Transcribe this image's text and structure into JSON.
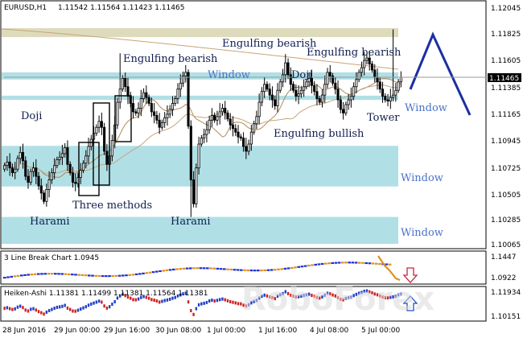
{
  "chart_data": [
    {
      "type": "candlestick",
      "symbol_header": "EURUSD,H1",
      "ohlc_header": "1.11542 1.11564 1.11423 1.11465",
      "price_axis_ticks": [
        "1.12045",
        "1.11825",
        "1.11605",
        "1.11385",
        "1.11165",
        "1.10945",
        "1.10725",
        "1.10505",
        "1.10285",
        "1.10065"
      ],
      "current_price_label": "1.11465",
      "ylim": [
        1.10065,
        1.12045
      ],
      "time_axis_ticks": [
        "28 Jun 2016",
        "29 Jun 00:00",
        "29 Jun 16:00",
        "30 Jun 08:00",
        "1 Jul 00:00",
        "1 Jul 16:00",
        "4 Jul 08:00",
        "5 Jul 00:00"
      ],
      "annotations": [
        "Engulfing bearish",
        "Engulfing bearish",
        "Engulfing bearish",
        "Window",
        "Doji",
        "Window",
        "Doji",
        "Tower",
        "Engulfing bullish",
        "Window",
        "Three methods",
        "Harami",
        "Harami",
        "Window"
      ],
      "zones": [
        {
          "label": "",
          "from": 1.11795,
          "to": 1.1187,
          "color": "#dedbbd"
        },
        {
          "label": "Window",
          "from": 1.1144,
          "to": 1.115,
          "color": "#b0e0e6"
        },
        {
          "label": "Window",
          "from": 1.1127,
          "to": 1.11305,
          "color": "#b0e0e6"
        },
        {
          "label": "Window",
          "from": 1.10545,
          "to": 1.10885,
          "color": "#b0e0e6"
        },
        {
          "label": "Window",
          "from": 1.10065,
          "to": 1.1029,
          "color": "#b0e0e6"
        }
      ],
      "closes": [
        1.1072,
        1.1075,
        1.107,
        1.1066,
        1.1069,
        1.1078,
        1.1083,
        1.1076,
        1.1063,
        1.1058,
        1.1067,
        1.107,
        1.1063,
        1.1055,
        1.1049,
        1.1042,
        1.1052,
        1.106,
        1.1066,
        1.1072,
        1.1077,
        1.1079,
        1.1082,
        1.1087,
        1.1073,
        1.1066,
        1.1058,
        1.1057,
        1.1062,
        1.1068,
        1.1074,
        1.108,
        1.1088,
        1.1094,
        1.1099,
        1.1104,
        1.1109,
        1.1104,
        1.1084,
        1.1073,
        1.108,
        1.1093,
        1.1106,
        1.1125,
        1.1136,
        1.1145,
        1.1138,
        1.113,
        1.1124,
        1.1117,
        1.1116,
        1.112,
        1.1128,
        1.1133,
        1.1129,
        1.1124,
        1.1117,
        1.1114,
        1.111,
        1.1104,
        1.1108,
        1.1112,
        1.1115,
        1.1119,
        1.1124,
        1.1128,
        1.1136,
        1.1141,
        1.1147,
        1.115,
        1.1105,
        1.106,
        1.104,
        1.107,
        1.109,
        1.1095,
        1.1098,
        1.1102,
        1.111,
        1.1114,
        1.111,
        1.1113,
        1.1117,
        1.112,
        1.1116,
        1.1111,
        1.1106,
        1.1103,
        1.11,
        1.1096,
        1.1095,
        1.1088,
        1.1084,
        1.109,
        1.11,
        1.1107,
        1.1113,
        1.1125,
        1.1134,
        1.114,
        1.1136,
        1.1131,
        1.1127,
        1.1122,
        1.1135,
        1.1142,
        1.1148,
        1.1158,
        1.1148,
        1.114,
        1.1135,
        1.113,
        1.1132,
        1.1135,
        1.1138,
        1.1142,
        1.1145,
        1.1139,
        1.1134,
        1.1128,
        1.1125,
        1.1131,
        1.114,
        1.115,
        1.1147,
        1.1141,
        1.1136,
        1.1127,
        1.1119,
        1.1116,
        1.1123,
        1.1127,
        1.113,
        1.1138,
        1.1144,
        1.115,
        1.1154,
        1.116,
        1.1162,
        1.1157,
        1.1152,
        1.1146,
        1.1142,
        1.1136,
        1.113,
        1.1127,
        1.1126,
        1.1129,
        1.1131,
        1.1135,
        1.1142,
        1.1146
      ]
    },
    {
      "type": "line",
      "indicator_label": "3 Line Break Chart 1.0945",
      "ticks": [
        "1.1447",
        "1.0922"
      ],
      "arrow": "down"
    },
    {
      "type": "bar",
      "indicator_label": "Heiken-Ashi 1.11381 1.11499 1.11381 1.11564 1.11381",
      "ticks": [
        "1.11934",
        "1.10151"
      ],
      "arrow": "up"
    }
  ],
  "watermark": "RoboForex"
}
